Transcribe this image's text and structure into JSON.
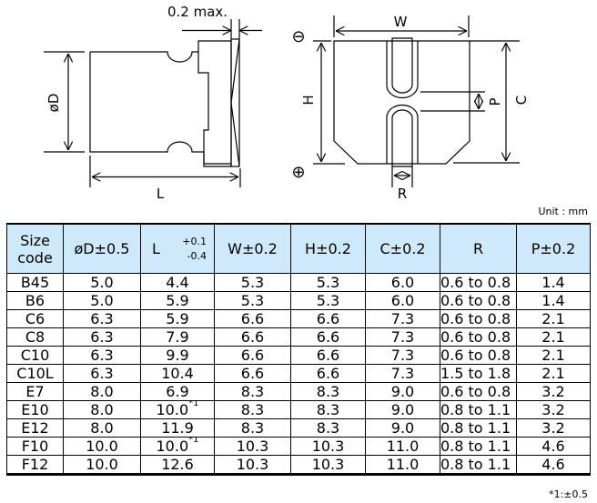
{
  "drawing": {
    "gap_label": "0.2 max.",
    "labels": {
      "D": "øD",
      "L": "L",
      "W": "W",
      "H": "H",
      "C": "C",
      "P": "P",
      "R": "R"
    },
    "minus_symbol": "⊖",
    "plus_symbol": "⊕"
  },
  "unit": "Unit : mm",
  "table": {
    "headers": {
      "size_line1": "Size",
      "size_line2": "code",
      "d": "øD±0.5",
      "l": "L",
      "l_plus": "+0.1",
      "l_minus": "-0.4",
      "w": "W±0.2",
      "h": "H±0.2",
      "c": "C±0.2",
      "r": "R",
      "p": "P±0.2"
    },
    "rows": [
      {
        "code": "B45",
        "d": "5.0",
        "l": "4.4",
        "note": "",
        "w": "5.3",
        "h": "5.3",
        "c": "6.0",
        "r": "0.6 to 0.8",
        "p": "1.4"
      },
      {
        "code": "B6",
        "d": "5.0",
        "l": "5.9",
        "note": "",
        "w": "5.3",
        "h": "5.3",
        "c": "6.0",
        "r": "0.6 to 0.8",
        "p": "1.4"
      },
      {
        "code": "C6",
        "d": "6.3",
        "l": "5.9",
        "note": "",
        "w": "6.6",
        "h": "6.6",
        "c": "7.3",
        "r": "0.6 to 0.8",
        "p": "2.1"
      },
      {
        "code": "C8",
        "d": "6.3",
        "l": "7.9",
        "note": "",
        "w": "6.6",
        "h": "6.6",
        "c": "7.3",
        "r": "0.6 to 0.8",
        "p": "2.1"
      },
      {
        "code": "C10",
        "d": "6.3",
        "l": "9.9",
        "note": "",
        "w": "6.6",
        "h": "6.6",
        "c": "7.3",
        "r": "0.6 to 0.8",
        "p": "2.1"
      },
      {
        "code": "C10L",
        "d": "6.3",
        "l": "10.4",
        "note": "",
        "w": "6.6",
        "h": "6.6",
        "c": "7.3",
        "r": "1.5 to 1.8",
        "p": "2.1"
      },
      {
        "code": "E7",
        "d": "8.0",
        "l": "6.9",
        "note": "",
        "w": "8.3",
        "h": "8.3",
        "c": "9.0",
        "r": "0.6 to 0.8",
        "p": "3.2"
      },
      {
        "code": "E10",
        "d": "8.0",
        "l": "10.0",
        "note": "*1",
        "w": "8.3",
        "h": "8.3",
        "c": "9.0",
        "r": "0.8 to 1.1",
        "p": "3.2"
      },
      {
        "code": "E12",
        "d": "8.0",
        "l": "11.9",
        "note": "",
        "w": "8.3",
        "h": "8.3",
        "c": "9.0",
        "r": "0.8 to 1.1",
        "p": "3.2"
      },
      {
        "code": "F10",
        "d": "10.0",
        "l": "10.0",
        "note": "*1",
        "w": "10.3",
        "h": "10.3",
        "c": "11.0",
        "r": "0.8 to 1.1",
        "p": "4.6"
      },
      {
        "code": "F12",
        "d": "10.0",
        "l": "12.6",
        "note": "",
        "w": "10.3",
        "h": "10.3",
        "c": "11.0",
        "r": "0.8 to 1.1",
        "p": "4.6"
      }
    ]
  },
  "footnote": "*1:±0.5"
}
